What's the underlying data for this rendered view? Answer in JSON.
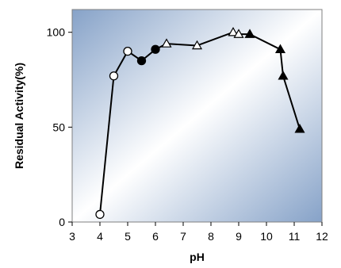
{
  "chart_data": {
    "type": "scatter",
    "xlabel": "pH",
    "ylabel": "Residual Activity(%)",
    "xlim": [
      3,
      12
    ],
    "ylim": [
      0,
      112
    ],
    "xticks": [
      "3",
      "4",
      "5",
      "6",
      "7",
      "8",
      "9",
      "10",
      "11",
      "12"
    ],
    "yticks": [
      "0",
      "50",
      "100"
    ],
    "background": "gradient blue-white",
    "line": {
      "color": "#000000",
      "points": [
        [
          4.0,
          4
        ],
        [
          4.5,
          77
        ],
        [
          5.0,
          90
        ],
        [
          5.5,
          85
        ],
        [
          6.0,
          91
        ],
        [
          6.4,
          94
        ],
        [
          7.5,
          93
        ],
        [
          8.8,
          100
        ],
        [
          9.0,
          99
        ],
        [
          9.4,
          99
        ],
        [
          10.5,
          91
        ],
        [
          10.6,
          77
        ],
        [
          11.2,
          49
        ]
      ]
    },
    "series": [
      {
        "marker": "circle-open",
        "values": [
          [
            4.0,
            4
          ],
          [
            4.5,
            77
          ],
          [
            5.0,
            90
          ]
        ]
      },
      {
        "marker": "circle-filled",
        "values": [
          [
            5.5,
            85
          ],
          [
            6.0,
            91
          ]
        ]
      },
      {
        "marker": "triangle-open",
        "values": [
          [
            6.4,
            94
          ],
          [
            7.5,
            93
          ],
          [
            8.8,
            100
          ],
          [
            9.0,
            99
          ]
        ]
      },
      {
        "marker": "triangle-filled",
        "values": [
          [
            9.4,
            99
          ],
          [
            10.5,
            91
          ],
          [
            10.6,
            77
          ],
          [
            11.2,
            49
          ]
        ]
      }
    ]
  }
}
